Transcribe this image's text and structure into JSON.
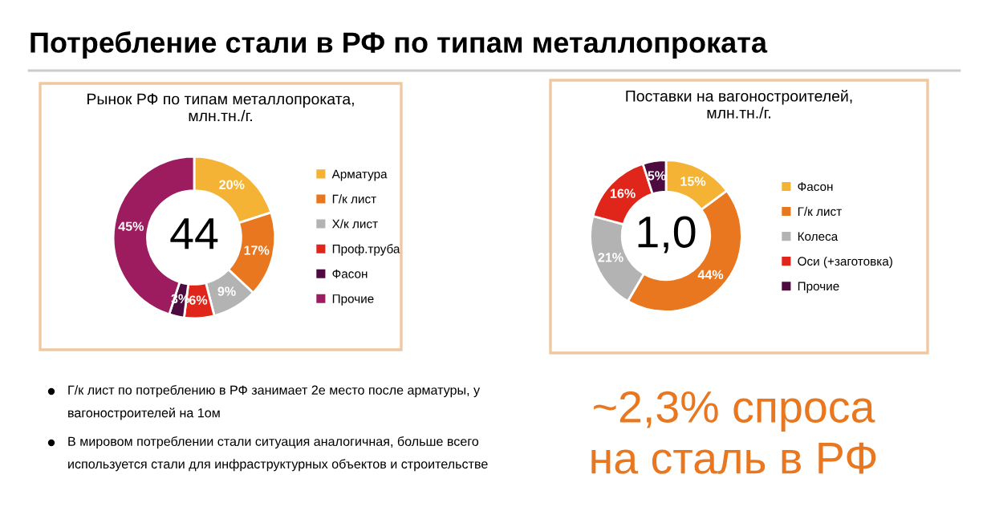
{
  "chart_data": [
    {
      "type": "other",
      "title": "Потребление стали в РФ по типам металлопроката"
    },
    {
      "type": "donut",
      "title": "Рынок РФ по типам металлопроката,\nмлн.тн./г.",
      "categories": [
        "Арматура",
        "Г/к лист",
        "Х/к лист",
        "Проф.труба",
        "Фасон",
        "Прочие"
      ],
      "values": [
        20,
        17,
        9,
        6,
        3,
        45
      ],
      "colors": [
        "#f5b335",
        "#e8771f",
        "#b3b3b3",
        "#e0261b",
        "#4d0b3f",
        "#9c1c5f"
      ],
      "value_labels": [
        "20%",
        "17%",
        "9%",
        "6%",
        "3%",
        "45%"
      ],
      "annotations": [
        "44"
      ],
      "legend": "right"
    },
    {
      "type": "donut",
      "title": "Поставки на вагоностроителей,\nмлн.тн./г.",
      "categories": [
        "Фасон",
        "Г/к лист",
        "Колеса",
        "Оси (+заготовка)",
        "Прочие"
      ],
      "values": [
        15,
        44,
        21,
        16,
        5
      ],
      "colors": [
        "#f5b335",
        "#e8771f",
        "#b3b3b3",
        "#e0261b",
        "#4d0b3f"
      ],
      "value_labels": [
        "15%",
        "44%",
        "21%",
        "16%",
        "5%"
      ],
      "annotations": [
        "1,0"
      ],
      "legend": "right"
    },
    {
      "type": "other",
      "annotations": [
        "Г/к лист по потреблению в РФ занимает 2е место после арматуры, у\nвагоностроителей на 1ом",
        "В мировом потреблении стали ситуация аналогичная, больше всего\nиспользуется стали для инфраструктурных объектов и строительстве",
        "~2,3% спроса\nна сталь в РФ"
      ]
    }
  ]
}
